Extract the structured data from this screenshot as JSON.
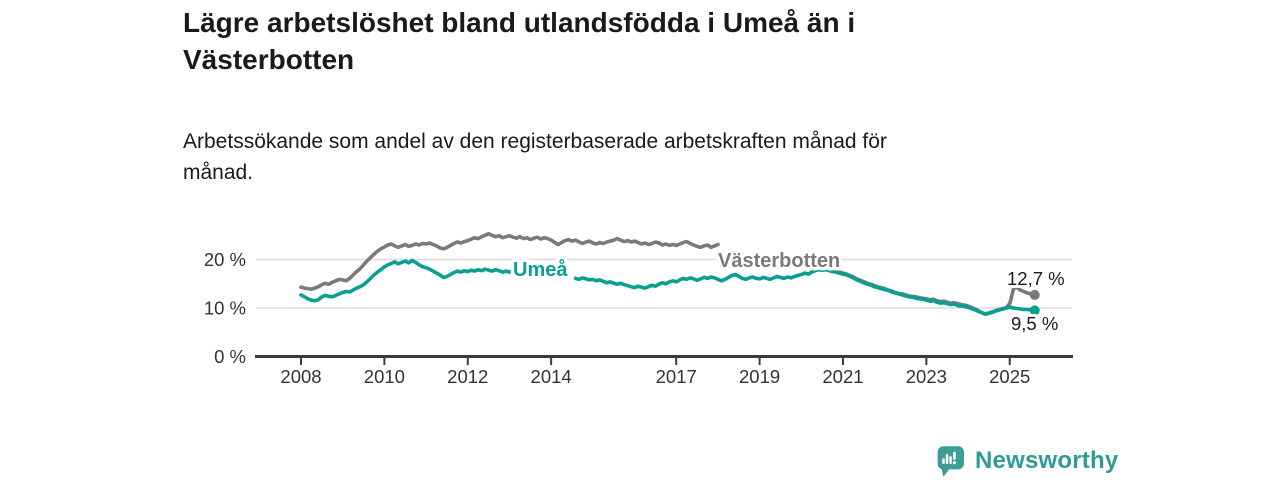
{
  "title": "Lägre arbetslöshet bland utlandsfödda i Umeå än i Västerbotten",
  "title_lines": [
    "Lägre arbetslöshet bland utlandsfödda i Umeå än i",
    "Västerbotten"
  ],
  "subtitle": "Arbetssökande som andel av den registerbaserade arbetskraften månad för månad.",
  "subtitle_lines": [
    "Arbetssökande som andel av den registerbaserade arbetskraften månad för",
    "månad."
  ],
  "branding": {
    "name": "Newsworthy",
    "logo_icon": "newsworthy-bar-chart-badge",
    "brand_color": "#2F9B94"
  },
  "colors": {
    "umea": "#0AA091",
    "vasterbotten": "#7A7A7A",
    "gridline": "#DBDBDB",
    "axis": "#3B3B3B",
    "tick_text": "#333333",
    "end_label_text": "#1A1A1A",
    "background": "#FFFFFF"
  },
  "chart_data": {
    "type": "line",
    "x_unit": "month",
    "x_start": "2008-01",
    "x_end": "2025-08",
    "grid": "horizontal",
    "legend_position": "inline-line-labels",
    "x_tick_years": [
      2008,
      2010,
      2012,
      2014,
      2017,
      2019,
      2021,
      2023,
      2025
    ],
    "x_tick_labels": [
      "2008",
      "2010",
      "2012",
      "2014",
      "2017",
      "2019",
      "2021",
      "2023",
      "2025"
    ],
    "y_ticks": [
      0,
      10,
      20
    ],
    "y_tick_labels": [
      "0 %",
      "10 %",
      "20 %"
    ],
    "ylim": [
      0,
      27
    ],
    "series": [
      {
        "name": "Västerbotten",
        "label_text": "Västerbotten",
        "color": "#7A7A7A",
        "end_value": 12.7,
        "end_label": "12,7 %",
        "hidden_ranges": [
          [
            121,
            150
          ]
        ],
        "values": [
          14.3,
          14.1,
          14.0,
          13.9,
          14.1,
          14.4,
          14.8,
          15.1,
          14.9,
          15.3,
          15.6,
          15.9,
          15.8,
          15.6,
          16.1,
          16.8,
          17.5,
          18.1,
          18.9,
          19.7,
          20.4,
          21.1,
          21.7,
          22.2,
          22.6,
          23.0,
          23.2,
          22.8,
          22.5,
          22.8,
          23.1,
          22.7,
          22.9,
          23.2,
          23.0,
          23.3,
          23.2,
          23.4,
          23.1,
          22.8,
          22.4,
          22.2,
          22.5,
          22.9,
          23.3,
          23.6,
          23.4,
          23.7,
          23.9,
          24.2,
          24.5,
          24.3,
          24.7,
          25.0,
          25.3,
          25.0,
          24.7,
          24.9,
          24.5,
          24.7,
          24.9,
          24.6,
          24.4,
          24.7,
          24.3,
          24.5,
          24.1,
          24.4,
          24.6,
          24.2,
          24.5,
          24.3,
          24.0,
          23.5,
          23.1,
          23.5,
          23.9,
          24.1,
          23.8,
          24.0,
          23.6,
          23.3,
          23.6,
          23.8,
          23.4,
          23.2,
          23.5,
          23.3,
          23.6,
          23.8,
          24.0,
          24.3,
          24.0,
          23.7,
          23.9,
          23.6,
          23.8,
          23.5,
          23.2,
          23.4,
          23.1,
          23.3,
          23.6,
          23.4,
          23.0,
          23.2,
          22.9,
          23.1,
          22.9,
          23.2,
          23.5,
          23.7,
          23.3,
          23.0,
          22.7,
          22.5,
          22.8,
          23.0,
          22.5,
          22.8,
          23.1,
          22.8,
          22.5,
          22.2,
          21.9,
          21.7,
          21.4,
          21.2,
          20.9,
          20.7,
          20.4,
          20.2,
          20.0,
          19.7,
          19.5,
          19.2,
          19.0,
          18.8,
          18.6,
          18.4,
          18.2,
          18.1,
          17.9,
          17.8,
          17.7,
          17.8,
          18.1,
          18.5,
          18.6,
          18.4,
          18.2,
          18.0,
          17.8,
          17.7,
          17.5,
          17.4,
          17.2,
          17.0,
          16.7,
          16.4,
          16.0,
          15.7,
          15.4,
          15.1,
          14.9,
          14.6,
          14.4,
          14.2,
          14.0,
          13.7,
          13.5,
          13.2,
          13.0,
          12.9,
          12.7,
          12.5,
          12.4,
          12.3,
          12.1,
          12.0,
          11.9,
          11.7,
          11.8,
          11.5,
          11.3,
          11.4,
          11.2,
          11.0,
          11.1,
          10.9,
          10.7,
          10.6,
          10.4,
          10.1,
          9.8,
          9.4,
          9.0,
          8.8,
          9.0,
          9.2,
          9.5,
          9.7,
          9.9,
          10.1,
          11.0,
          13.9,
          14.3,
          13.7,
          13.4,
          13.1,
          12.9,
          12.7
        ]
      },
      {
        "name": "Umeå",
        "label_text": "Umeå",
        "color": "#0AA091",
        "end_value": 9.5,
        "end_label": "9,5 %",
        "hidden_ranges": [
          [
            62,
            78
          ]
        ],
        "values": [
          12.7,
          12.3,
          11.9,
          11.6,
          11.5,
          11.7,
          12.3,
          12.6,
          12.4,
          12.3,
          12.6,
          12.9,
          13.2,
          13.4,
          13.3,
          13.7,
          14.1,
          14.4,
          14.8,
          15.4,
          16.1,
          16.8,
          17.4,
          17.9,
          18.5,
          18.9,
          19.2,
          19.5,
          19.1,
          19.4,
          19.7,
          19.3,
          19.8,
          19.4,
          18.9,
          18.5,
          18.3,
          18.0,
          17.6,
          17.2,
          16.8,
          16.3,
          16.5,
          16.9,
          17.3,
          17.6,
          17.4,
          17.7,
          17.5,
          17.8,
          17.6,
          17.9,
          17.7,
          18.0,
          17.8,
          17.6,
          17.9,
          17.7,
          17.4,
          17.6,
          17.4,
          17.7,
          17.5,
          17.2,
          17.0,
          16.8,
          17.1,
          16.9,
          16.7,
          16.9,
          16.6,
          16.4,
          16.2,
          16.4,
          16.1,
          15.9,
          16.2,
          16.0,
          16.3,
          16.1,
          15.9,
          16.2,
          16.0,
          15.8,
          15.9,
          15.6,
          15.8,
          15.5,
          15.2,
          15.4,
          15.1,
          14.9,
          15.1,
          14.8,
          14.6,
          14.4,
          14.2,
          14.5,
          14.3,
          14.1,
          14.4,
          14.7,
          14.5,
          14.9,
          15.2,
          15.0,
          15.4,
          15.6,
          15.4,
          15.8,
          16.1,
          15.9,
          16.2,
          16.0,
          15.7,
          16.0,
          16.3,
          16.1,
          16.4,
          16.2,
          15.9,
          15.6,
          15.9,
          16.3,
          16.7,
          16.9,
          16.5,
          16.1,
          15.9,
          16.2,
          16.4,
          16.1,
          16.0,
          16.3,
          16.1,
          15.9,
          16.2,
          16.5,
          16.3,
          16.1,
          16.4,
          16.2,
          16.5,
          16.7,
          16.9,
          17.2,
          17.0,
          17.4,
          17.7,
          17.9,
          17.8,
          17.9,
          17.7,
          17.5,
          17.4,
          17.2,
          17.0,
          16.8,
          16.5,
          16.2,
          15.8,
          15.5,
          15.2,
          14.9,
          14.7,
          14.4,
          14.2,
          14.0,
          13.8,
          13.6,
          13.3,
          13.1,
          12.9,
          12.7,
          12.5,
          12.3,
          12.2,
          12.0,
          11.9,
          11.8,
          11.6,
          11.4,
          11.5,
          11.2,
          11.0,
          11.1,
          10.9,
          10.7,
          10.8,
          10.5,
          10.4,
          10.3,
          10.1,
          9.9,
          9.6,
          9.3,
          9.0,
          8.7,
          8.9,
          9.1,
          9.4,
          9.6,
          9.8,
          10.0,
          10.2,
          10.0,
          9.9,
          9.8,
          9.7,
          9.7,
          9.6,
          9.5
        ]
      }
    ]
  }
}
